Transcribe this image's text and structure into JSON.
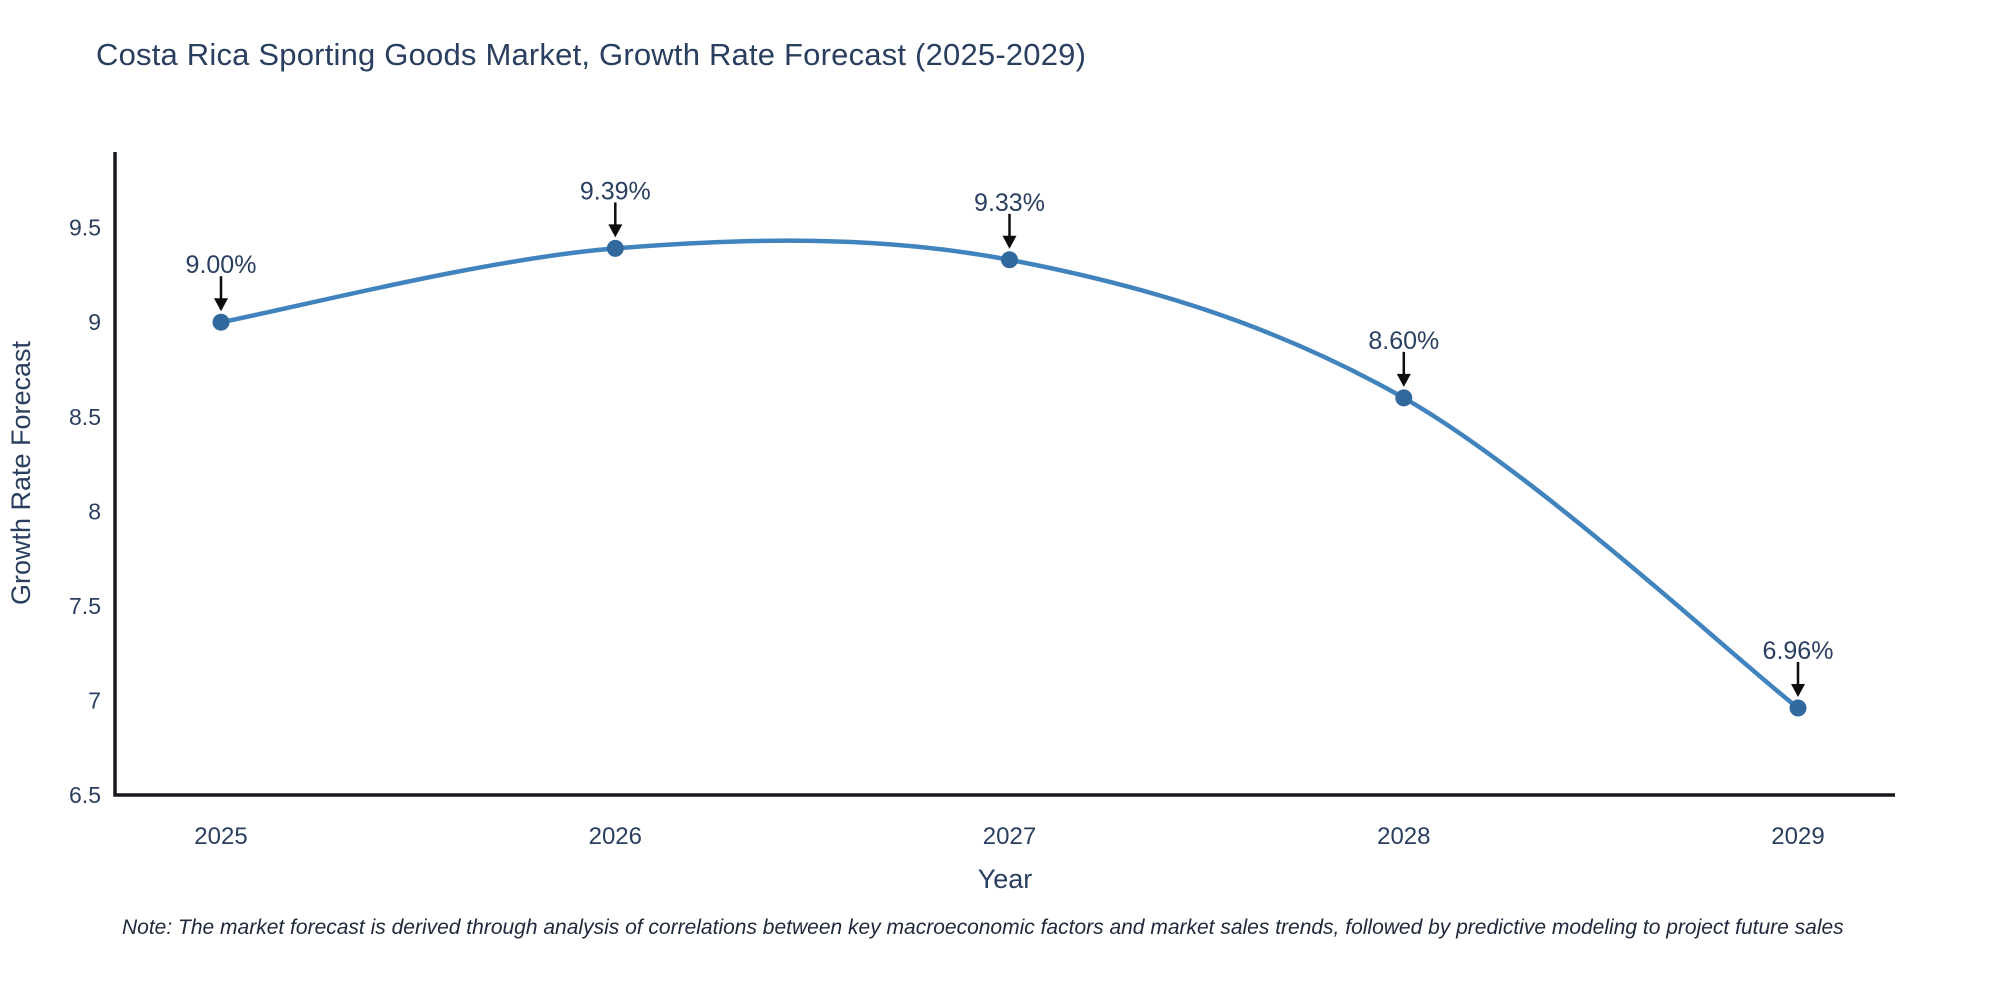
{
  "title": "Costa Rica Sporting Goods Market, Growth Rate Forecast (2025-2029)",
  "chart_data": {
    "type": "line",
    "line_shape": "spline",
    "categories": [
      "2025",
      "2026",
      "2027",
      "2028",
      "2029"
    ],
    "x": [
      2025,
      2026,
      2027,
      2028,
      2029
    ],
    "values": [
      9.0,
      9.39,
      9.33,
      8.6,
      6.96
    ],
    "point_labels": [
      "9.00%",
      "9.39%",
      "9.33%",
      "8.60%",
      "6.96%"
    ],
    "title": "Costa Rica Sporting Goods Market, Growth Rate Forecast (2025-2029)",
    "xlabel": "Year",
    "ylabel": "Growth Rate Forecast",
    "ylim": [
      6.5,
      9.9
    ],
    "yticks": [
      6.5,
      7,
      7.5,
      8,
      8.5,
      9,
      9.5
    ],
    "ytick_labels": [
      "6.5",
      "7",
      "7.5",
      "8",
      "8.5",
      "9",
      "9.5"
    ],
    "grid": false,
    "legend": "none",
    "annotation_style": "label-above-with-down-arrow",
    "line_color": "#4083bd",
    "marker_color": "#31699f",
    "axis_color": "#16181d",
    "text_color": "#2a3f5f",
    "arrow_color": "#0d0d0d"
  },
  "note": "Note: The market forecast is derived through analysis of correlations between key macroeconomic factors and market sales trends, followed by predictive modeling to project future sales"
}
